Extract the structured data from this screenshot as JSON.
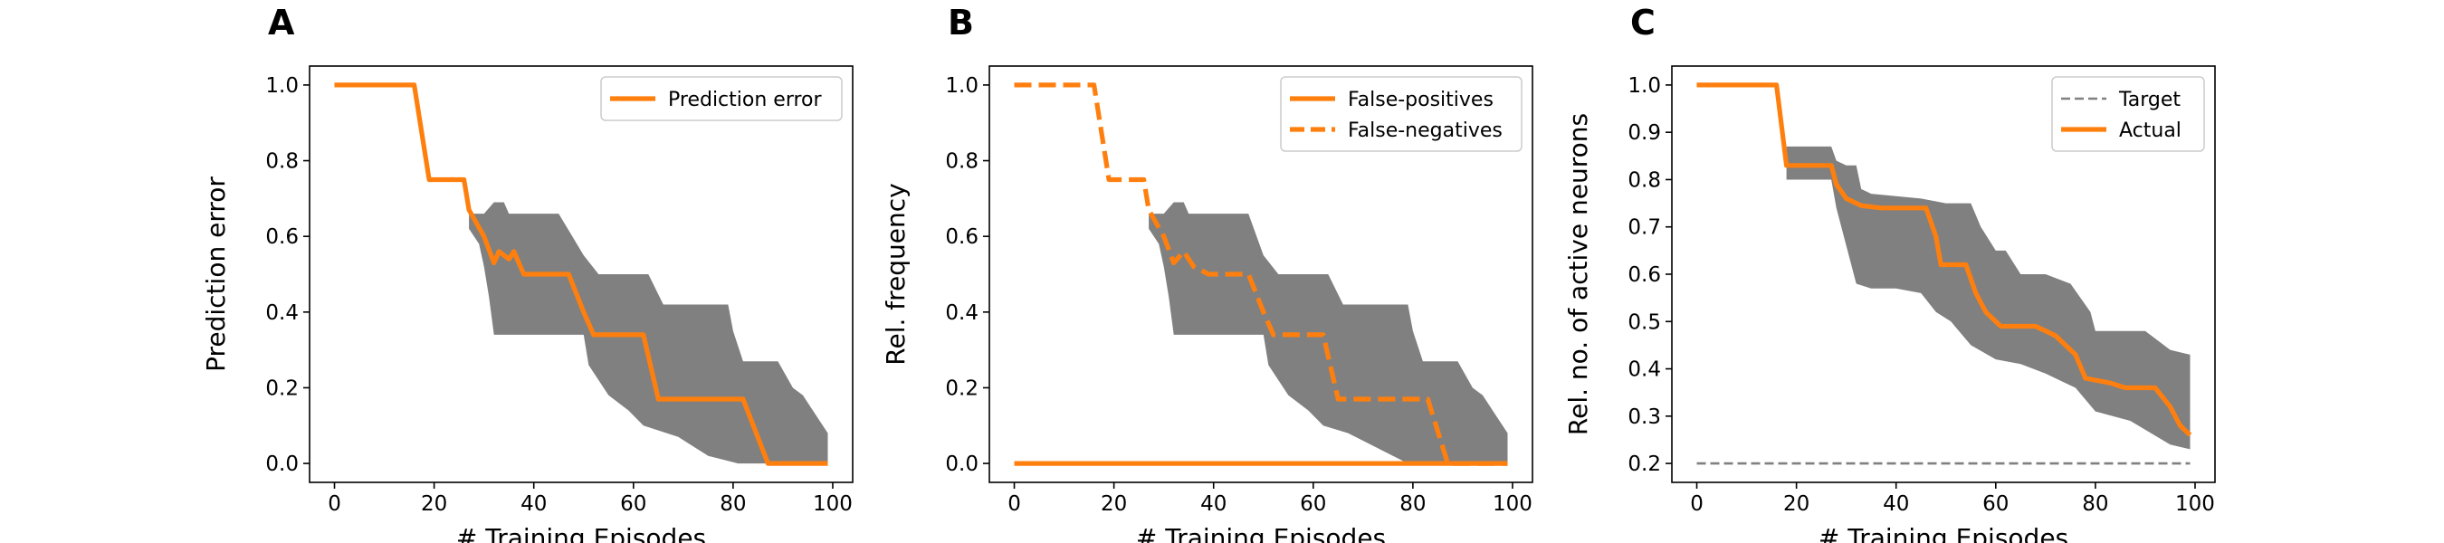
{
  "colors": {
    "accent": "#ff7f0e",
    "band": "#808080",
    "target": "#808080"
  },
  "chart_data": [
    {
      "type": "line",
      "panel": "A",
      "xlabel": "# Training Episodes",
      "ylabel": "Prediction error",
      "xlim": [
        -5,
        104
      ],
      "ylim": [
        -0.05,
        1.05
      ],
      "xticks": [
        0,
        20,
        40,
        60,
        80,
        100
      ],
      "yticks": [
        0.0,
        0.2,
        0.4,
        0.6,
        0.8,
        1.0
      ],
      "ytick_labels": [
        "0.0",
        "0.2",
        "0.4",
        "0.6",
        "0.8",
        "1.0"
      ],
      "legend": {
        "placement": "top-right"
      },
      "band": {
        "upper": [
          [
            27,
            0.66
          ],
          [
            30,
            0.66
          ],
          [
            32,
            0.69
          ],
          [
            34,
            0.69
          ],
          [
            35,
            0.66
          ],
          [
            45,
            0.66
          ],
          [
            50,
            0.55
          ],
          [
            53,
            0.5
          ],
          [
            63,
            0.5
          ],
          [
            66,
            0.42
          ],
          [
            79,
            0.42
          ],
          [
            80,
            0.35
          ],
          [
            82,
            0.27
          ],
          [
            89,
            0.27
          ],
          [
            92,
            0.2
          ],
          [
            94,
            0.18
          ],
          [
            98,
            0.1
          ],
          [
            99,
            0.08
          ]
        ],
        "lower": [
          [
            99,
            0.0
          ],
          [
            81,
            0.0
          ],
          [
            75,
            0.02
          ],
          [
            69,
            0.07
          ],
          [
            62,
            0.1
          ],
          [
            59,
            0.14
          ],
          [
            55,
            0.18
          ],
          [
            51,
            0.26
          ],
          [
            50,
            0.34
          ],
          [
            40,
            0.34
          ],
          [
            32,
            0.34
          ],
          [
            31,
            0.44
          ],
          [
            30,
            0.52
          ],
          [
            29,
            0.58
          ],
          [
            27,
            0.62
          ]
        ]
      },
      "series": [
        {
          "name": "Prediction error",
          "style": "solid",
          "points": [
            [
              0,
              1.0
            ],
            [
              16,
              1.0
            ],
            [
              19,
              0.75
            ],
            [
              26,
              0.75
            ],
            [
              27,
              0.67
            ],
            [
              30,
              0.6
            ],
            [
              32,
              0.53
            ],
            [
              33,
              0.56
            ],
            [
              35,
              0.54
            ],
            [
              36,
              0.56
            ],
            [
              38,
              0.5
            ],
            [
              47,
              0.5
            ],
            [
              50,
              0.4
            ],
            [
              52,
              0.34
            ],
            [
              62,
              0.34
            ],
            [
              65,
              0.17
            ],
            [
              82,
              0.17
            ],
            [
              87,
              0.0
            ],
            [
              99,
              0.0
            ]
          ]
        }
      ]
    },
    {
      "type": "line",
      "panel": "B",
      "xlabel": "# Training Episodes",
      "ylabel": "Rel. frequency",
      "xlim": [
        -5,
        104
      ],
      "ylim": [
        -0.05,
        1.05
      ],
      "xticks": [
        0,
        20,
        40,
        60,
        80,
        100
      ],
      "yticks": [
        0.0,
        0.2,
        0.4,
        0.6,
        0.8,
        1.0
      ],
      "ytick_labels": [
        "0.0",
        "0.2",
        "0.4",
        "0.6",
        "0.8",
        "1.0"
      ],
      "legend": {
        "placement": "top-right"
      },
      "band": {
        "upper": [
          [
            27,
            0.66
          ],
          [
            30,
            0.66
          ],
          [
            32,
            0.69
          ],
          [
            34,
            0.69
          ],
          [
            35,
            0.66
          ],
          [
            47,
            0.66
          ],
          [
            50,
            0.55
          ],
          [
            53,
            0.5
          ],
          [
            63,
            0.5
          ],
          [
            66,
            0.42
          ],
          [
            79,
            0.42
          ],
          [
            80,
            0.35
          ],
          [
            82,
            0.27
          ],
          [
            89,
            0.27
          ],
          [
            92,
            0.2
          ],
          [
            94,
            0.18
          ],
          [
            98,
            0.1
          ],
          [
            99,
            0.08
          ]
        ],
        "lower": [
          [
            99,
            0.0
          ],
          [
            79,
            0.0
          ],
          [
            73,
            0.04
          ],
          [
            67,
            0.08
          ],
          [
            62,
            0.1
          ],
          [
            59,
            0.14
          ],
          [
            55,
            0.18
          ],
          [
            51,
            0.26
          ],
          [
            50,
            0.34
          ],
          [
            42,
            0.34
          ],
          [
            32,
            0.34
          ],
          [
            31,
            0.44
          ],
          [
            30,
            0.52
          ],
          [
            29,
            0.58
          ],
          [
            27,
            0.62
          ]
        ]
      },
      "series": [
        {
          "name": "False-positives",
          "style": "solid",
          "points": [
            [
              0,
              0.0
            ],
            [
              99,
              0.0
            ]
          ]
        },
        {
          "name": "False-negatives",
          "style": "dashed",
          "points": [
            [
              0,
              1.0
            ],
            [
              16,
              1.0
            ],
            [
              19,
              0.75
            ],
            [
              26,
              0.75
            ],
            [
              27,
              0.67
            ],
            [
              30,
              0.6
            ],
            [
              32,
              0.53
            ],
            [
              34,
              0.56
            ],
            [
              36,
              0.52
            ],
            [
              39,
              0.5
            ],
            [
              47,
              0.5
            ],
            [
              50,
              0.4
            ],
            [
              52,
              0.34
            ],
            [
              62,
              0.34
            ],
            [
              65,
              0.17
            ],
            [
              83,
              0.17
            ],
            [
              87,
              0.0
            ],
            [
              99,
              0.0
            ]
          ]
        }
      ]
    },
    {
      "type": "line",
      "panel": "C",
      "xlabel": "# Training Episodes",
      "ylabel": "Rel. no. of active neurons",
      "xlim": [
        -5,
        104
      ],
      "ylim": [
        0.16,
        1.04
      ],
      "xticks": [
        0,
        20,
        40,
        60,
        80,
        100
      ],
      "yticks": [
        0.2,
        0.3,
        0.4,
        0.5,
        0.6,
        0.7,
        0.8,
        0.9,
        1.0
      ],
      "ytick_labels": [
        "0.2",
        "0.3",
        "0.4",
        "0.5",
        "0.6",
        "0.7",
        "0.8",
        "0.9",
        "1.0"
      ],
      "legend": {
        "placement": "top-right"
      },
      "band": {
        "upper": [
          [
            18,
            0.87
          ],
          [
            27,
            0.87
          ],
          [
            28,
            0.84
          ],
          [
            30,
            0.83
          ],
          [
            32,
            0.83
          ],
          [
            33,
            0.78
          ],
          [
            35,
            0.77
          ],
          [
            45,
            0.76
          ],
          [
            50,
            0.75
          ],
          [
            55,
            0.75
          ],
          [
            57,
            0.7
          ],
          [
            60,
            0.65
          ],
          [
            62,
            0.65
          ],
          [
            65,
            0.6
          ],
          [
            70,
            0.6
          ],
          [
            75,
            0.58
          ],
          [
            79,
            0.52
          ],
          [
            80,
            0.48
          ],
          [
            90,
            0.48
          ],
          [
            95,
            0.44
          ],
          [
            99,
            0.43
          ]
        ],
        "lower": [
          [
            99,
            0.23
          ],
          [
            95,
            0.24
          ],
          [
            87,
            0.29
          ],
          [
            80,
            0.31
          ],
          [
            76,
            0.36
          ],
          [
            70,
            0.39
          ],
          [
            65,
            0.41
          ],
          [
            60,
            0.42
          ],
          [
            55,
            0.45
          ],
          [
            51,
            0.5
          ],
          [
            48,
            0.52
          ],
          [
            45,
            0.56
          ],
          [
            40,
            0.57
          ],
          [
            35,
            0.57
          ],
          [
            32,
            0.58
          ],
          [
            30,
            0.66
          ],
          [
            28,
            0.74
          ],
          [
            27,
            0.8
          ],
          [
            18,
            0.8
          ]
        ]
      },
      "series": [
        {
          "name": "Target",
          "style": "thin-dashed",
          "points": [
            [
              0,
              0.2
            ],
            [
              99,
              0.2
            ]
          ]
        },
        {
          "name": "Actual",
          "style": "solid",
          "points": [
            [
              0,
              1.0
            ],
            [
              16,
              1.0
            ],
            [
              18,
              0.83
            ],
            [
              27,
              0.83
            ],
            [
              28,
              0.79
            ],
            [
              30,
              0.76
            ],
            [
              33,
              0.745
            ],
            [
              37,
              0.74
            ],
            [
              46,
              0.74
            ],
            [
              48,
              0.68
            ],
            [
              49,
              0.62
            ],
            [
              54,
              0.62
            ],
            [
              56,
              0.56
            ],
            [
              58,
              0.52
            ],
            [
              61,
              0.49
            ],
            [
              68,
              0.49
            ],
            [
              72,
              0.47
            ],
            [
              76,
              0.43
            ],
            [
              78,
              0.38
            ],
            [
              83,
              0.37
            ],
            [
              86,
              0.36
            ],
            [
              92,
              0.36
            ],
            [
              95,
              0.32
            ],
            [
              97,
              0.28
            ],
            [
              99,
              0.26
            ]
          ]
        }
      ]
    }
  ]
}
